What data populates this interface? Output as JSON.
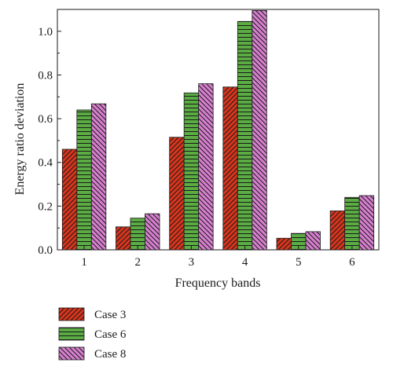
{
  "chart_data": {
    "type": "bar",
    "categories": [
      "1",
      "2",
      "3",
      "4",
      "5",
      "6"
    ],
    "series": [
      {
        "name": "Case 3",
        "values": [
          0.46,
          0.105,
          0.515,
          0.745,
          0.053,
          0.178
        ],
        "color": "#d9351c",
        "pattern": "diagonal-forward"
      },
      {
        "name": "Case 6",
        "values": [
          0.64,
          0.145,
          0.718,
          1.045,
          0.075,
          0.24
        ],
        "color": "#5aac43",
        "pattern": "horizontal"
      },
      {
        "name": "Case 8",
        "values": [
          0.668,
          0.165,
          0.76,
          1.095,
          0.083,
          0.248
        ],
        "color": "#d77fcf",
        "pattern": "diagonal-backward"
      }
    ],
    "xlabel": "Frequency bands",
    "ylabel": "Energy ratio deviation",
    "ylim": [
      0,
      1.1
    ],
    "yticks": [
      "0.0",
      "0.2",
      "0.4",
      "0.6",
      "0.8",
      "1.0"
    ],
    "grid": false,
    "legend_position": "bottom-left outside"
  }
}
